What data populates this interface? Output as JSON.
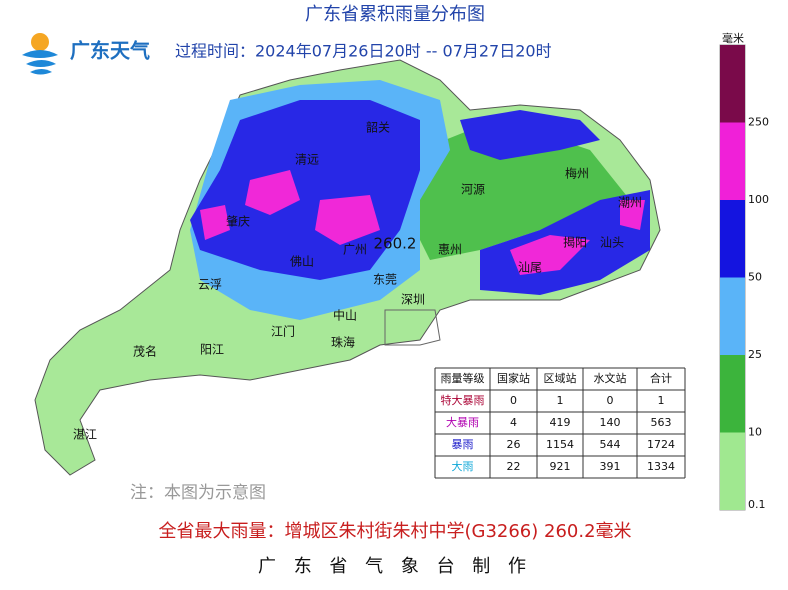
{
  "header": {
    "title": "广东省累积雨量分布图",
    "logo_text": "广东天气",
    "period": "过程时间：2024年07月26日20时 -- 07月27日20时"
  },
  "map": {
    "cities": [
      "韶关",
      "清远",
      "梅州",
      "河源",
      "潮州",
      "肇庆",
      "揭阳",
      "汕头",
      "广州",
      "惠州",
      "佛山",
      "汕尾",
      "东莞",
      "云浮",
      "深圳",
      "中山",
      "江门",
      "珠海",
      "阳江",
      "茂名",
      "湛江"
    ],
    "max_value": 260.2
  },
  "legend": {
    "unit": "毫米",
    "levels": [
      250,
      100,
      50,
      25,
      10,
      0.1
    ]
  },
  "table": {
    "header": [
      "雨量等级",
      "国家站",
      "区域站",
      "水文站",
      "合计"
    ],
    "rows": [
      [
        "特大暴雨",
        0,
        1,
        0,
        1
      ],
      [
        "大暴雨",
        4,
        419,
        140,
        563
      ],
      [
        "暴雨",
        26,
        1154,
        544,
        1724
      ],
      [
        "大雨",
        22,
        921,
        391,
        1334
      ]
    ]
  },
  "note": "注：本图为示意图",
  "max_rain": "全省最大雨量：增城区朱村街朱村中学(G3266) 260.2毫米",
  "footer": "广 东 省 气 象 台 制 作"
}
